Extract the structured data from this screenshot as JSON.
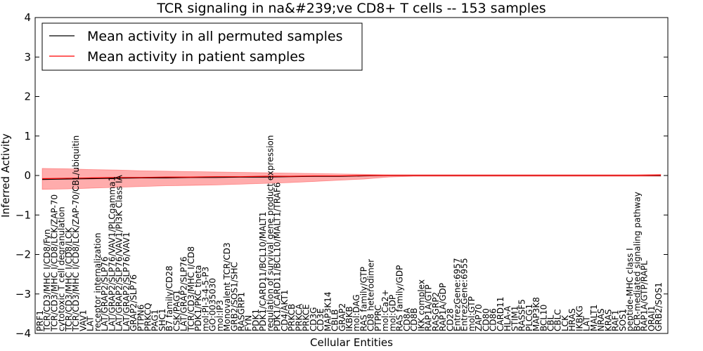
{
  "chart_data": {
    "type": "line",
    "title": "TCR signaling in na&#239;ve CD8+ T cells -- 153 samples",
    "xlabel": "Cellular Entities",
    "ylabel": "Inferred Activity",
    "ylim": [
      -4,
      4
    ],
    "yticks": [
      "4",
      "3",
      "2",
      "1",
      "0",
      "−1",
      "−2",
      "−3",
      "−4"
    ],
    "grid": false,
    "legend_position": "top-left",
    "colors": {
      "permuted": "#000000",
      "patient": "#ff0000",
      "band": "#ff8080"
    },
    "series": [
      {
        "name": "Mean activity in all permuted samples",
        "values": [
          -0.1,
          -0.09,
          -0.08,
          -0.07,
          -0.06,
          -0.06,
          -0.05,
          -0.05,
          -0.04,
          -0.04,
          -0.03,
          -0.02,
          -0.02,
          -0.01,
          0.0,
          0.0,
          0.0,
          0.0,
          0.0,
          0.0,
          0.0,
          0.0,
          0.0,
          0.0,
          0.0,
          0.0
        ]
      },
      {
        "name": "Mean activity in patient samples",
        "values": [
          -0.08,
          -0.07,
          -0.06,
          -0.05,
          -0.05,
          -0.04,
          -0.04,
          -0.03,
          -0.03,
          -0.02,
          -0.02,
          -0.01,
          -0.01,
          0.0,
          0.0,
          0.0,
          0.0,
          0.0,
          0.0,
          0.0,
          0.0,
          0.0,
          0.0,
          0.0,
          0.0,
          0.01
        ]
      }
    ],
    "band": {
      "upper": [
        0.18,
        0.17,
        0.15,
        0.14,
        0.12,
        0.11,
        0.1,
        0.09,
        0.08,
        0.07,
        0.06,
        0.05,
        0.04,
        0.03,
        0.02,
        0.02,
        0.02,
        0.02,
        0.02,
        0.02,
        0.02,
        0.02,
        0.02,
        0.02,
        0.02,
        0.03
      ],
      "lower": [
        -0.35,
        -0.34,
        -0.32,
        -0.3,
        -0.28,
        -0.26,
        -0.25,
        -0.24,
        -0.22,
        -0.2,
        -0.18,
        -0.15,
        -0.12,
        -0.09,
        -0.04,
        -0.02,
        -0.02,
        -0.02,
        -0.02,
        -0.02,
        -0.02,
        -0.02,
        -0.02,
        -0.02,
        -0.02,
        -0.02
      ]
    },
    "entities": [
      "PRF1",
      "TCR/CD3/MHC I/CD8/Fyn",
      "TCR/CD3/MHC I/CD8/LCK/ZAP-70",
      "cytotoxic T cell degranulation",
      "TCR/CD3/MHC I/CD8/LCK",
      "TCR/CD3/MHC I/CD8/LCK/ZAP-70/CBL/ubiquitin",
      "VAV1",
      "LAT",
      "receptor internalization",
      "LAT/GRAP2/SLP76",
      "LAT/GRAP2/SLP76/VAV1/PLCgamma1",
      "LAT/GRAP2/SLP76/VAV1/PI3K Class IA",
      "LAT/GRAP2/SLP76/VAV1",
      "GRAP2/SLP76",
      "PTPN6",
      "PRKCQ",
      "PAG1",
      "SHC1",
      "B7 family/CD28",
      "CSK/PAG1",
      "LAT/GRAP2/SLP76",
      "TCR/CD3/MHC I/CD8",
      "PDK1/PKC theta",
      "mol:PI-3-4-5-P3",
      "GO:0035030",
      "mol:IP3",
      "Monovalent TCR/CD3",
      "GRB2/SOS1/SHC",
      "RASGRP1",
      "FYN",
      "PDK1",
      "PDK1/CARD11/BCL10/MALT1",
      "regulation of survival gene product expression",
      "PDK1/CARD11/BCL10/MALT1/TRAF6",
      "CD4/AKT1",
      "PRKCB",
      "PRKCA",
      "PRKCE",
      "CD3G",
      "CD3E",
      "MAP3K14",
      "CBLB",
      "GRAP2",
      "IKBKB",
      "mol:DAG",
      "RAS family/GTP",
      "CD8 heterodimer",
      "PTPRC",
      "mol:Ca2+",
      "mol:GDP",
      "RAS family/GDP",
      "CD8A",
      "CD8B",
      "IKK complex",
      "RAP1A/GTP",
      "RASGRP2",
      "RAP1A/GDP",
      "CD28",
      "EntrezGene:6957",
      "EntrezGene:6955",
      "mol:GTP",
      "ZAP70",
      "CD80",
      "CD86",
      "CARD11",
      "HLA-A",
      "STIM1",
      "RASSF5",
      "PLCG1",
      "MAP3K8",
      "BCL10",
      "CBL",
      "CBLC",
      "LCK",
      "HRAS",
      "IKBKG",
      "LAT",
      "MALT1",
      "NRAS",
      "KRAS",
      "RAF1",
      "SOS1",
      "peptide-MHC class I",
      "BCR-mediated signaling pathway",
      "RAP1A/GTP/RAPL",
      "ORAI1",
      "GRB2/SOS1"
    ]
  },
  "legend": {
    "items": [
      {
        "label": "Mean activity in all permuted samples",
        "color": "#000000"
      },
      {
        "label": "Mean activity in patient samples",
        "color": "#ff0000"
      }
    ]
  }
}
